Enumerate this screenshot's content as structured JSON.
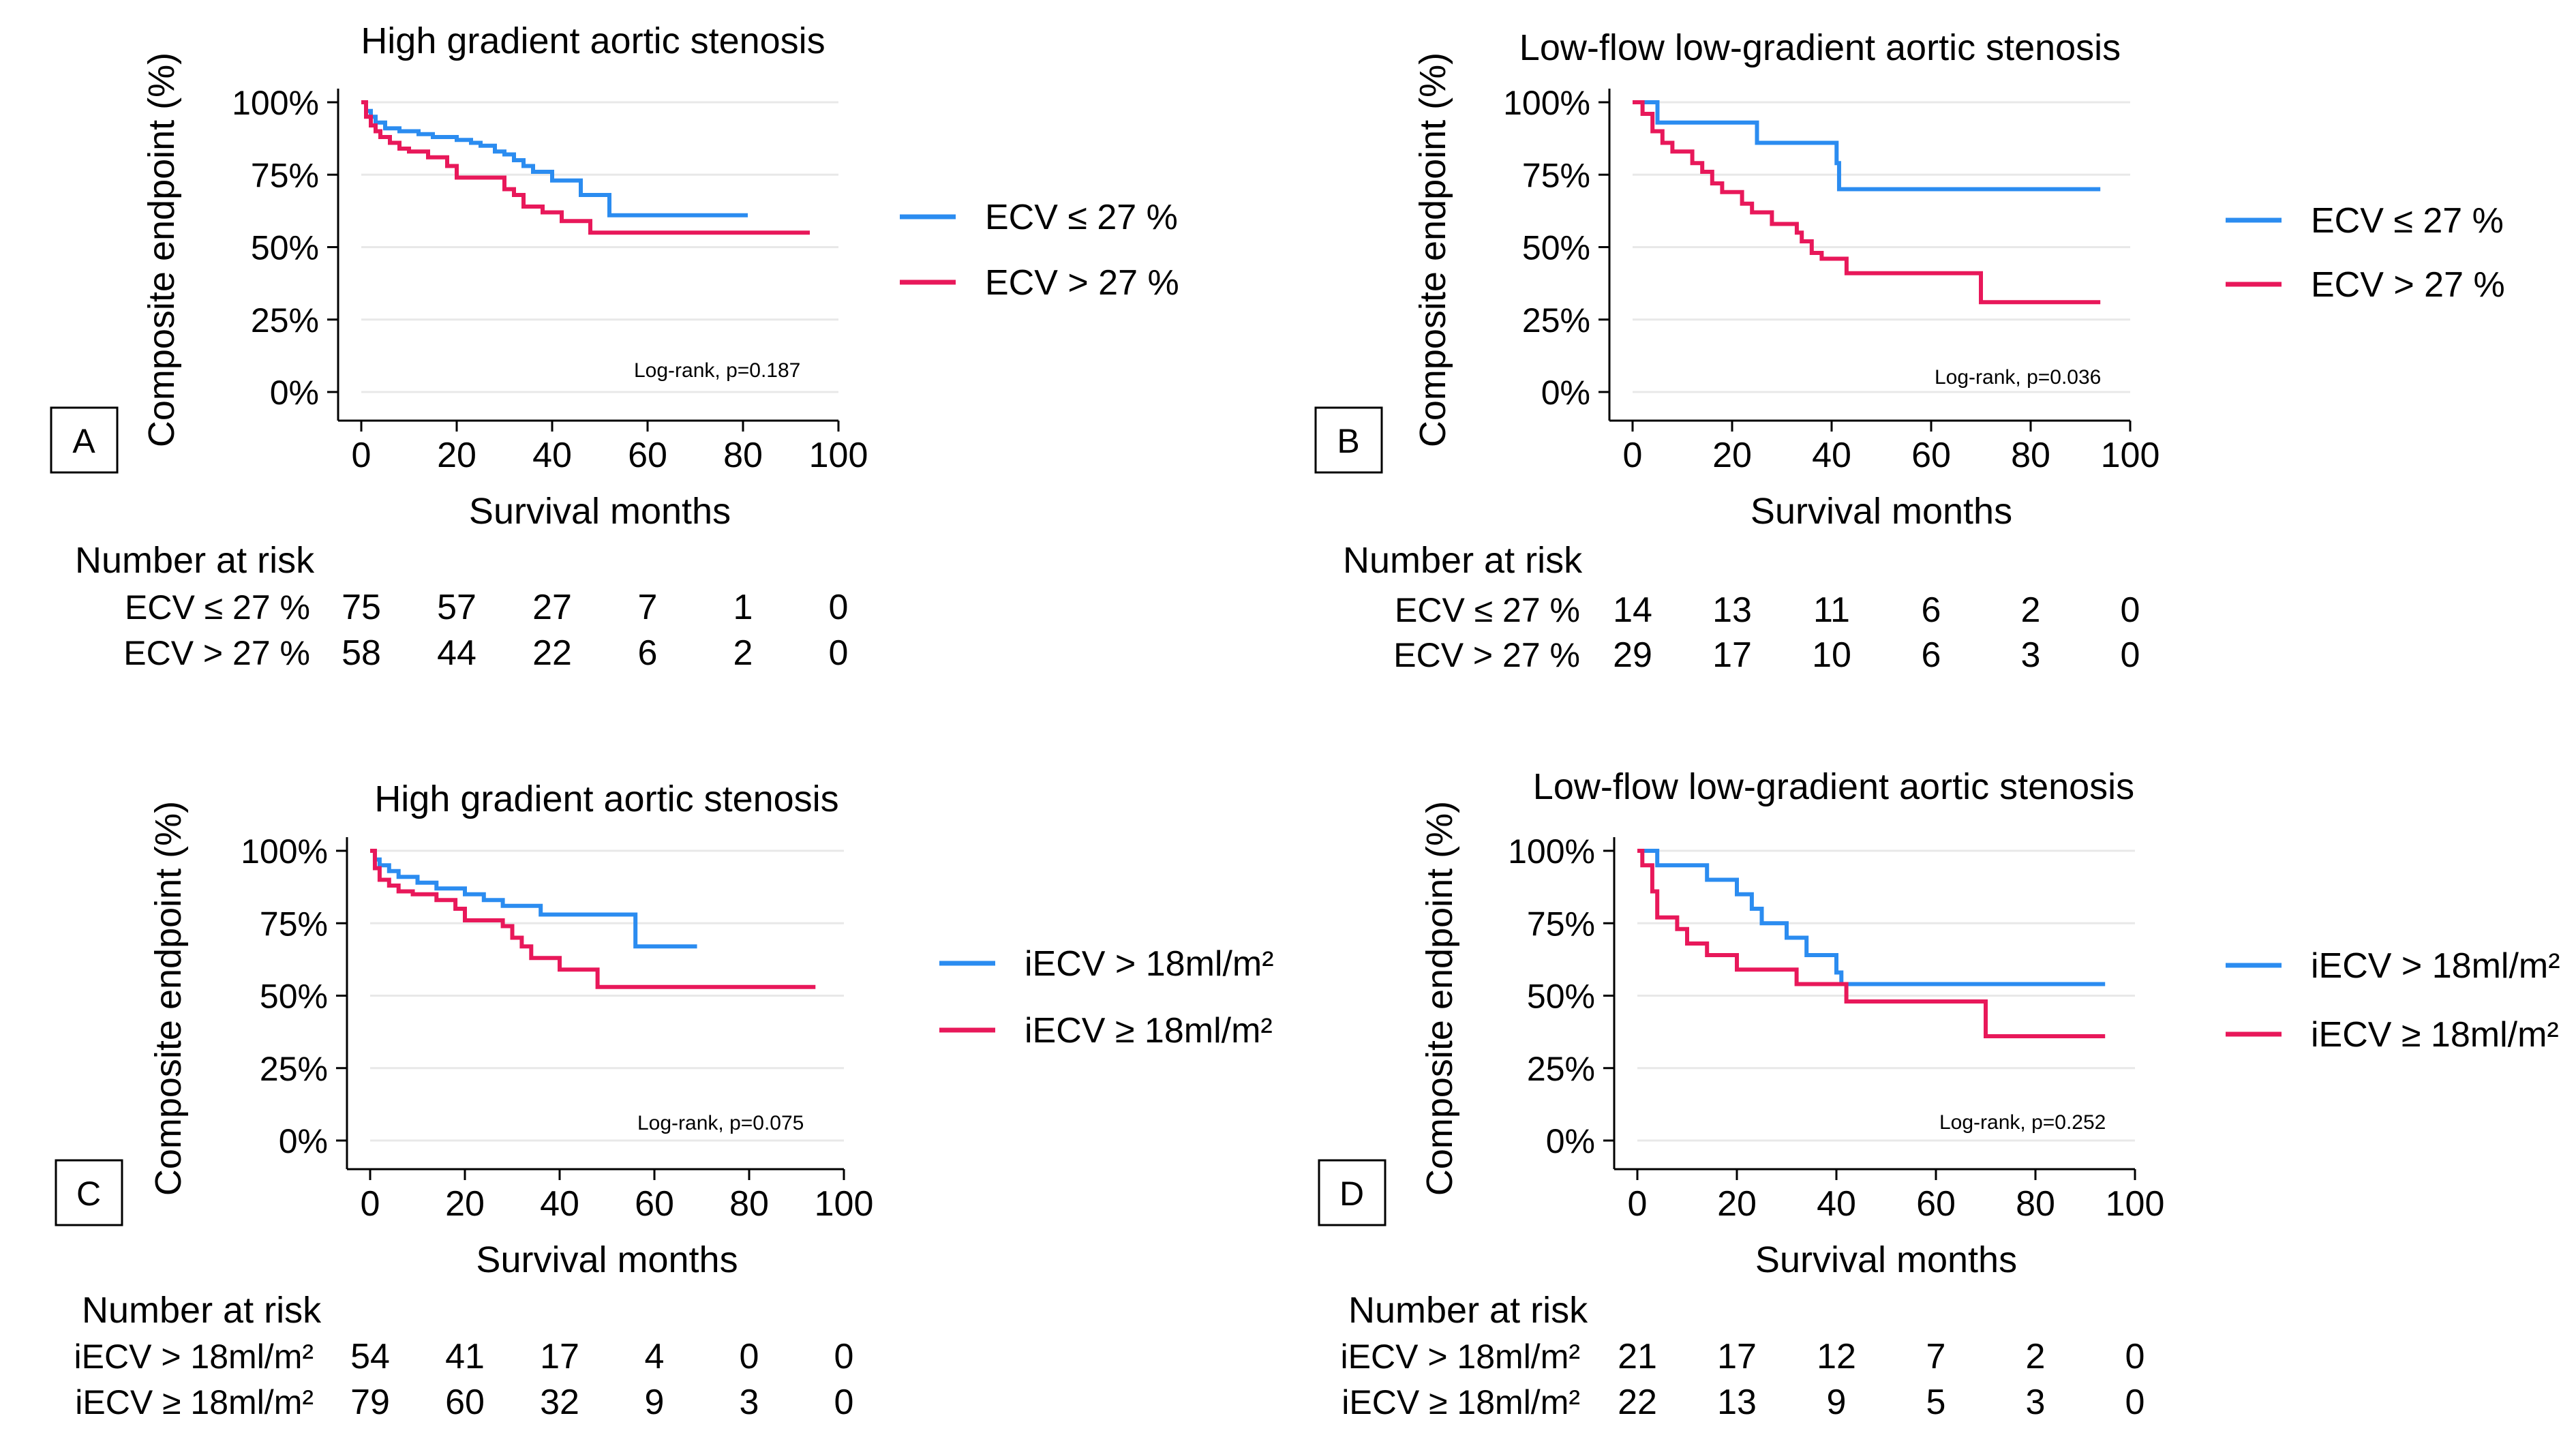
{
  "figure": {
    "axis_color": "#000000",
    "grid_color": "#e8e8e8"
  },
  "chart_data": [
    {
      "type": "line",
      "panel_letter": "A",
      "title": "High gradient aortic stenosis",
      "xlabel": "Survival months",
      "ylabel": "Composite endpoint (%)",
      "xlim": [
        0,
        100
      ],
      "ylim": [
        0,
        100
      ],
      "xticks": [
        "0",
        "20",
        "40",
        "60",
        "80",
        "100"
      ],
      "yticks": [
        "0%",
        "25%",
        "50%",
        "75%",
        "100%"
      ],
      "annotation": "Log-rank, p=0.187",
      "risk_title": "Number at risk",
      "risk_times": [
        0,
        20,
        40,
        60,
        80,
        100
      ],
      "series": [
        {
          "name": "ECV ≤ 27 %",
          "color": "#2b8cf0",
          "end": 81,
          "steps": [
            [
              0,
              100
            ],
            [
              1,
              97
            ],
            [
              2,
              95
            ],
            [
              3,
              93
            ],
            [
              5,
              91
            ],
            [
              8,
              90
            ],
            [
              12,
              89
            ],
            [
              15,
              88
            ],
            [
              20,
              87
            ],
            [
              23,
              86
            ],
            [
              25,
              85
            ],
            [
              28,
              83
            ],
            [
              30,
              82
            ],
            [
              32,
              80
            ],
            [
              34,
              78
            ],
            [
              36,
              76
            ],
            [
              40,
              73
            ],
            [
              46,
              68
            ],
            [
              52,
              61
            ]
          ],
          "risk_label": "ECV ≤ 27 %",
          "risk": [
            "75",
            "57",
            "27",
            "7",
            "1",
            "0"
          ]
        },
        {
          "name": "ECV > 27 %",
          "color": "#e8185a",
          "end": 94,
          "steps": [
            [
              0,
              100
            ],
            [
              1,
              95
            ],
            [
              2,
              92
            ],
            [
              3,
              90
            ],
            [
              4,
              88
            ],
            [
              6,
              86
            ],
            [
              8,
              84
            ],
            [
              10,
              83
            ],
            [
              14,
              81
            ],
            [
              18,
              78
            ],
            [
              20,
              74
            ],
            [
              30,
              70
            ],
            [
              32,
              68
            ],
            [
              34,
              64
            ],
            [
              38,
              62
            ],
            [
              42,
              59
            ],
            [
              48,
              55
            ]
          ],
          "risk_label": "ECV > 27 %",
          "risk": [
            "58",
            "44",
            "22",
            "6",
            "2",
            "0"
          ]
        }
      ]
    },
    {
      "type": "line",
      "panel_letter": "B",
      "title": "Low-flow low-gradient aortic stenosis",
      "xlabel": "Survival months",
      "ylabel": "Composite endpoint (%)",
      "xlim": [
        0,
        100
      ],
      "ylim": [
        0,
        100
      ],
      "xticks": [
        "0",
        "20",
        "40",
        "60",
        "80",
        "100"
      ],
      "yticks": [
        "0%",
        "25%",
        "50%",
        "75%",
        "100%"
      ],
      "annotation": "Log-rank, p=0.036",
      "risk_title": "Number at risk",
      "risk_times": [
        0,
        20,
        40,
        60,
        80,
        100
      ],
      "series": [
        {
          "name": "ECV ≤ 27 %",
          "color": "#2b8cf0",
          "end": 94,
          "steps": [
            [
              0,
              100
            ],
            [
              5,
              93
            ],
            [
              25,
              86
            ],
            [
              41,
              79
            ],
            [
              41.5,
              70
            ]
          ],
          "risk_label": "ECV ≤ 27 %",
          "risk": [
            "14",
            "13",
            "11",
            "6",
            "2",
            "0"
          ]
        },
        {
          "name": "ECV > 27 %",
          "color": "#e8185a",
          "end": 94,
          "steps": [
            [
              0,
              100
            ],
            [
              2,
              96
            ],
            [
              4,
              90
            ],
            [
              6,
              86
            ],
            [
              8,
              83
            ],
            [
              12,
              79
            ],
            [
              14,
              76
            ],
            [
              16,
              72
            ],
            [
              18,
              69
            ],
            [
              22,
              65
            ],
            [
              24,
              62
            ],
            [
              28,
              58
            ],
            [
              33,
              55
            ],
            [
              34,
              52
            ],
            [
              36,
              48
            ],
            [
              38,
              46
            ],
            [
              43,
              41
            ],
            [
              70,
              31
            ]
          ],
          "risk_label": "ECV > 27 %",
          "risk": [
            "29",
            "17",
            "10",
            "6",
            "3",
            "0"
          ]
        }
      ]
    },
    {
      "type": "line",
      "panel_letter": "C",
      "title": "High gradient aortic stenosis",
      "xlabel": "Survival months",
      "ylabel": "Composite endpoint (%)",
      "xlim": [
        0,
        100
      ],
      "ylim": [
        0,
        100
      ],
      "xticks": [
        "0",
        "20",
        "40",
        "60",
        "80",
        "100"
      ],
      "yticks": [
        "0%",
        "25%",
        "50%",
        "75%",
        "100%"
      ],
      "annotation": "Log-rank, p=0.075",
      "risk_title": "Number at risk",
      "risk_times": [
        0,
        20,
        40,
        60,
        80,
        100
      ],
      "series": [
        {
          "name": "iECV > 18ml/m²",
          "color": "#2b8cf0",
          "end": 69,
          "steps": [
            [
              0,
              100
            ],
            [
              1,
              97
            ],
            [
              2,
              95
            ],
            [
              4,
              93
            ],
            [
              6,
              91
            ],
            [
              10,
              89
            ],
            [
              14,
              87
            ],
            [
              20,
              85
            ],
            [
              24,
              83
            ],
            [
              28,
              81
            ],
            [
              36,
              78
            ],
            [
              56,
              67
            ]
          ],
          "risk_label": "iECV > 18ml/m²",
          "risk": [
            "54",
            "41",
            "17",
            "4",
            "0",
            "0"
          ]
        },
        {
          "name": "iECV ≥ 18ml/m²",
          "color": "#e8185a",
          "end": 94,
          "steps": [
            [
              0,
              100
            ],
            [
              1,
              94
            ],
            [
              2,
              90
            ],
            [
              4,
              88
            ],
            [
              6,
              86
            ],
            [
              9,
              85
            ],
            [
              14,
              83
            ],
            [
              18,
              80
            ],
            [
              20,
              76
            ],
            [
              28,
              74
            ],
            [
              30,
              70
            ],
            [
              32,
              67
            ],
            [
              34,
              63
            ],
            [
              40,
              59
            ],
            [
              48,
              53
            ]
          ],
          "risk_label": "iECV ≥ 18ml/m²",
          "risk": [
            "79",
            "60",
            "32",
            "9",
            "3",
            "0"
          ]
        }
      ]
    },
    {
      "type": "line",
      "panel_letter": "D",
      "title": "Low-flow low-gradient aortic stenosis",
      "xlabel": "Survival months",
      "ylabel": "Composite endpoint (%)",
      "xlim": [
        0,
        100
      ],
      "ylim": [
        0,
        100
      ],
      "xticks": [
        "0",
        "20",
        "40",
        "60",
        "80",
        "100"
      ],
      "yticks": [
        "0%",
        "25%",
        "50%",
        "75%",
        "100%"
      ],
      "annotation": "Log-rank, p=0.252",
      "risk_title": "Number at risk",
      "risk_times": [
        0,
        20,
        40,
        60,
        80,
        100
      ],
      "series": [
        {
          "name": "iECV > 18ml/m²",
          "color": "#2b8cf0",
          "end": 94,
          "steps": [
            [
              0,
              100
            ],
            [
              4,
              95
            ],
            [
              14,
              90
            ],
            [
              20,
              85
            ],
            [
              23,
              80
            ],
            [
              25,
              75
            ],
            [
              30,
              70
            ],
            [
              34,
              64
            ],
            [
              40,
              58
            ],
            [
              41,
              54
            ]
          ],
          "risk_label": "iECV > 18ml/m²",
          "risk": [
            "21",
            "17",
            "12",
            "7",
            "2",
            "0"
          ]
        },
        {
          "name": "iECV ≥ 18ml/m²",
          "color": "#e8185a",
          "end": 94,
          "steps": [
            [
              0,
              100
            ],
            [
              1,
              95
            ],
            [
              3,
              86
            ],
            [
              4,
              77
            ],
            [
              8,
              73
            ],
            [
              10,
              68
            ],
            [
              14,
              64
            ],
            [
              20,
              59
            ],
            [
              32,
              54
            ],
            [
              42,
              48
            ],
            [
              70,
              36
            ]
          ],
          "risk_label": "iECV ≥ 18ml/m²",
          "risk": [
            "22",
            "13",
            "9",
            "5",
            "3",
            "0"
          ]
        }
      ]
    }
  ]
}
